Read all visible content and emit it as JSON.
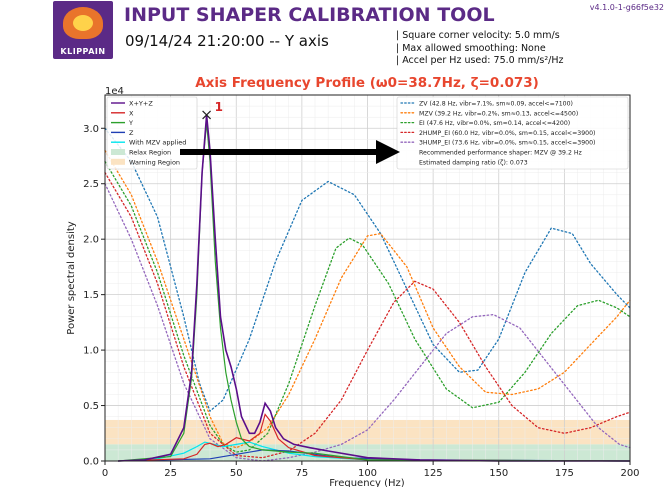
{
  "header": {
    "logo_text": "KLIPPAIN",
    "title": "INPUT SHAPER CALIBRATION TOOL",
    "subtitle": "09/14/24 21:20:00 -- Y axis",
    "version": "v4.1.0-1-g66f5e32",
    "params": [
      "| Square corner velocity: 5.0 mm/s",
      "| Max allowed smoothing: None",
      "| Accel per Hz used: 75.0 mm/s²/Hz"
    ]
  },
  "colors": {
    "title": "#5b2a86",
    "chart_title": "#e8462e",
    "xyz": "#5b0e8a",
    "x": "#d62728",
    "y": "#2ca02c",
    "z": "#1f3fb4",
    "with_shaper": "#00e5ee",
    "relax_region": "#cce8d4",
    "warning_region": "#fbe3c2",
    "zv": "#1f77b4",
    "mzv": "#ff7f0e",
    "ei": "#2ca02c",
    "2hump_ei": "#d62728",
    "3hump_ei": "#9467bd"
  },
  "chart_data": {
    "type": "line",
    "title": "Axis Frequency Profile (ω0=38.7Hz, ζ=0.073)",
    "xlabel": "Frequency (Hz)",
    "ylabel": "Power spectral density",
    "y_scale_label": "1e4",
    "xlim": [
      0,
      200
    ],
    "ylim": [
      0,
      33000
    ],
    "x_ticks": [
      "0",
      "25",
      "50",
      "75",
      "100",
      "125",
      "150",
      "175",
      "200"
    ],
    "y_ticks": [
      "0.0",
      "0.5",
      "1.0",
      "1.5",
      "2.0",
      "2.5",
      "3.0"
    ],
    "grid": true,
    "peak_annotation": {
      "label": "1",
      "x": 38.7,
      "y": 31200
    },
    "left_legend": [
      "X+Y+Z",
      "X",
      "Y",
      "Z",
      "With MZV applied",
      "Relax Region",
      "Warning Region"
    ],
    "right_legend": [
      "ZV (42.8 Hz, vibr=7.1%, sm≈0.09, accel<=7100)",
      "MZV (39.2 Hz, vibr=0.2%, sm≈0.13, accel<=4500)",
      "EI (47.6 Hz, vibr=0.0%, sm≈0.14, accel<=4200)",
      "2HUMP_EI (60.0 Hz, vibr=0.0%, sm≈0.15, accel<=3900)",
      "3HUMP_EI (73.6 Hz, vibr=0.0%, sm≈0.15, accel<=3900)",
      "Recommended performance shaper: MZV @ 39.2 Hz",
      "Estimated damping ratio (ζ): 0.073"
    ],
    "regions": {
      "relax_max": 1500,
      "warning_max": 3700
    },
    "psd_series": [
      {
        "name": "X+Y+Z",
        "points": [
          [
            5,
            0
          ],
          [
            15,
            100
          ],
          [
            25,
            600
          ],
          [
            30,
            3000
          ],
          [
            33,
            8000
          ],
          [
            35,
            16000
          ],
          [
            37,
            26000
          ],
          [
            38.7,
            31200
          ],
          [
            40,
            28000
          ],
          [
            42,
            20000
          ],
          [
            44,
            13000
          ],
          [
            46,
            10000
          ],
          [
            48,
            8500
          ],
          [
            50,
            6500
          ],
          [
            52,
            4000
          ],
          [
            55,
            2500
          ],
          [
            57,
            2500
          ],
          [
            59,
            3500
          ],
          [
            61,
            5200
          ],
          [
            63,
            4500
          ],
          [
            65,
            3000
          ],
          [
            68,
            2000
          ],
          [
            72,
            1500
          ],
          [
            78,
            1200
          ],
          [
            85,
            900
          ],
          [
            100,
            300
          ],
          [
            120,
            100
          ],
          [
            150,
            0
          ],
          [
            200,
            0
          ]
        ]
      },
      {
        "name": "X",
        "points": [
          [
            5,
            0
          ],
          [
            30,
            200
          ],
          [
            35,
            600
          ],
          [
            38,
            1500
          ],
          [
            40,
            1600
          ],
          [
            43,
            1300
          ],
          [
            46,
            1500
          ],
          [
            50,
            2100
          ],
          [
            55,
            1800
          ],
          [
            59,
            2500
          ],
          [
            61,
            4200
          ],
          [
            63,
            3600
          ],
          [
            66,
            2000
          ],
          [
            70,
            1200
          ],
          [
            80,
            500
          ],
          [
            100,
            100
          ],
          [
            200,
            0
          ]
        ]
      },
      {
        "name": "Y",
        "points": [
          [
            5,
            0
          ],
          [
            25,
            400
          ],
          [
            30,
            2500
          ],
          [
            33,
            7500
          ],
          [
            35,
            15000
          ],
          [
            37,
            26000
          ],
          [
            38.7,
            30500
          ],
          [
            40,
            27000
          ],
          [
            42,
            18000
          ],
          [
            44,
            12000
          ],
          [
            46,
            8000
          ],
          [
            48,
            5500
          ],
          [
            50,
            3500
          ],
          [
            52,
            2000
          ],
          [
            55,
            1300
          ],
          [
            60,
            1000
          ],
          [
            70,
            800
          ],
          [
            80,
            700
          ],
          [
            90,
            400
          ],
          [
            100,
            100
          ],
          [
            200,
            0
          ]
        ]
      },
      {
        "name": "Z",
        "points": [
          [
            5,
            0
          ],
          [
            40,
            200
          ],
          [
            60,
            1000
          ],
          [
            70,
            900
          ],
          [
            80,
            600
          ],
          [
            90,
            300
          ],
          [
            120,
            100
          ],
          [
            200,
            0
          ]
        ]
      },
      {
        "name": "With MZV applied",
        "points": [
          [
            5,
            0
          ],
          [
            20,
            200
          ],
          [
            30,
            700
          ],
          [
            35,
            1300
          ],
          [
            38,
            1700
          ],
          [
            40,
            1600
          ],
          [
            45,
            1300
          ],
          [
            50,
            1500
          ],
          [
            55,
            1700
          ],
          [
            60,
            1300
          ],
          [
            70,
            700
          ],
          [
            80,
            400
          ],
          [
            100,
            100
          ],
          [
            200,
            0
          ]
        ]
      }
    ],
    "shaper_series": [
      {
        "name": "ZV",
        "points": [
          [
            0,
            30000
          ],
          [
            10,
            27000
          ],
          [
            20,
            22000
          ],
          [
            30,
            13000
          ],
          [
            36,
            7000
          ],
          [
            40,
            4500
          ],
          [
            45,
            5500
          ],
          [
            55,
            11000
          ],
          [
            65,
            18000
          ],
          [
            75,
            23500
          ],
          [
            85,
            25200
          ],
          [
            95,
            24000
          ],
          [
            105,
            20500
          ],
          [
            115,
            15500
          ],
          [
            125,
            10500
          ],
          [
            135,
            8000
          ],
          [
            142,
            8200
          ],
          [
            150,
            11000
          ],
          [
            160,
            17000
          ],
          [
            170,
            21000
          ],
          [
            178,
            20500
          ],
          [
            185,
            17800
          ],
          [
            195,
            15000
          ],
          [
            200,
            13800
          ]
        ]
      },
      {
        "name": "MZV",
        "points": [
          [
            0,
            28000
          ],
          [
            10,
            24000
          ],
          [
            20,
            18000
          ],
          [
            30,
            11000
          ],
          [
            40,
            4000
          ],
          [
            45,
            1600
          ],
          [
            50,
            1200
          ],
          [
            55,
            1700
          ],
          [
            62,
            3000
          ],
          [
            70,
            6000
          ],
          [
            80,
            11000
          ],
          [
            90,
            16500
          ],
          [
            100,
            20300
          ],
          [
            105,
            20500
          ],
          [
            115,
            17500
          ],
          [
            125,
            12000
          ],
          [
            135,
            8500
          ],
          [
            145,
            6200
          ],
          [
            155,
            6000
          ],
          [
            165,
            6500
          ],
          [
            175,
            8000
          ],
          [
            185,
            10500
          ],
          [
            195,
            13000
          ],
          [
            200,
            14500
          ]
        ]
      },
      {
        "name": "EI",
        "points": [
          [
            0,
            27000
          ],
          [
            10,
            23000
          ],
          [
            20,
            17000
          ],
          [
            30,
            9500
          ],
          [
            40,
            3200
          ],
          [
            45,
            1500
          ],
          [
            50,
            800
          ],
          [
            55,
            1000
          ],
          [
            62,
            2500
          ],
          [
            70,
            7000
          ],
          [
            80,
            14000
          ],
          [
            88,
            19200
          ],
          [
            93,
            20100
          ],
          [
            98,
            19500
          ],
          [
            108,
            16000
          ],
          [
            118,
            11000
          ],
          [
            130,
            6500
          ],
          [
            140,
            4800
          ],
          [
            150,
            5300
          ],
          [
            160,
            8000
          ],
          [
            170,
            11500
          ],
          [
            180,
            14000
          ],
          [
            188,
            14500
          ],
          [
            195,
            13800
          ],
          [
            200,
            13000
          ]
        ]
      },
      {
        "name": "2HUMP_EI",
        "points": [
          [
            0,
            26000
          ],
          [
            10,
            22000
          ],
          [
            20,
            16000
          ],
          [
            30,
            8500
          ],
          [
            40,
            2500
          ],
          [
            50,
            500
          ],
          [
            60,
            300
          ],
          [
            70,
            900
          ],
          [
            80,
            2500
          ],
          [
            90,
            5500
          ],
          [
            100,
            10000
          ],
          [
            110,
            14300
          ],
          [
            118,
            16200
          ],
          [
            125,
            15500
          ],
          [
            135,
            12500
          ],
          [
            145,
            8500
          ],
          [
            155,
            5000
          ],
          [
            165,
            3000
          ],
          [
            175,
            2500
          ],
          [
            185,
            3000
          ],
          [
            195,
            4000
          ],
          [
            200,
            4400
          ]
        ]
      },
      {
        "name": "3HUMP_EI",
        "points": [
          [
            0,
            25000
          ],
          [
            10,
            20000
          ],
          [
            20,
            14000
          ],
          [
            30,
            7000
          ],
          [
            40,
            2000
          ],
          [
            50,
            300
          ],
          [
            60,
            0
          ],
          [
            70,
            300
          ],
          [
            80,
            800
          ],
          [
            90,
            1500
          ],
          [
            100,
            2800
          ],
          [
            110,
            5500
          ],
          [
            120,
            8500
          ],
          [
            130,
            11500
          ],
          [
            140,
            13000
          ],
          [
            148,
            13200
          ],
          [
            158,
            12000
          ],
          [
            168,
            9000
          ],
          [
            178,
            6000
          ],
          [
            188,
            3000
          ],
          [
            196,
            1500
          ],
          [
            200,
            1200
          ]
        ]
      }
    ]
  }
}
